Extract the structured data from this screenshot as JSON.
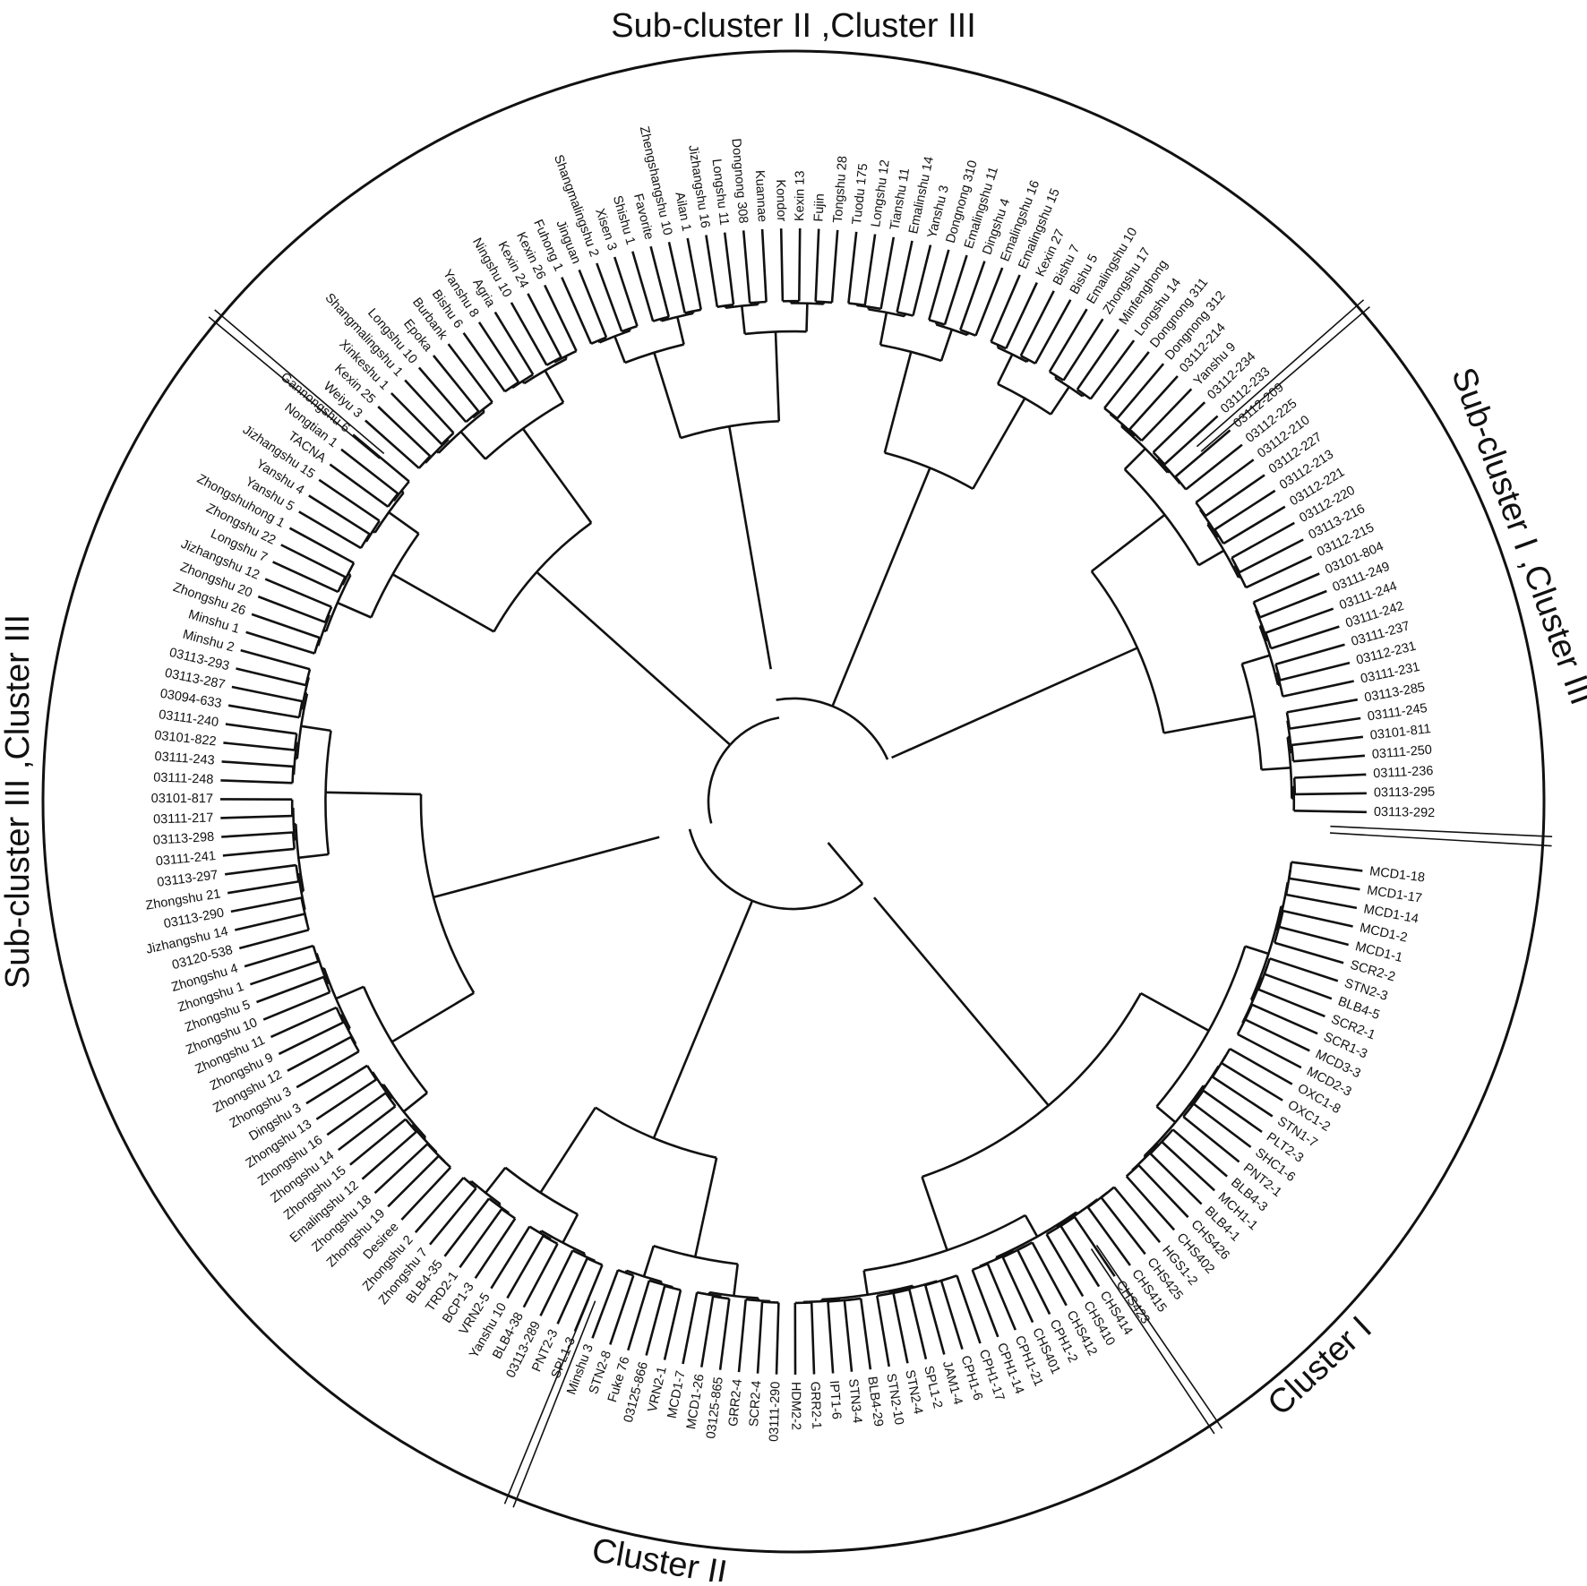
{
  "clusters": [
    {
      "label": "Sub-cluster II ,Cluster III",
      "angle": 270
    },
    {
      "label": "Sub-cluster I ,Cluster III",
      "angle": 340
    },
    {
      "label": "Cluster I",
      "angle": 47
    },
    {
      "label": "Cluster II",
      "angle": 100
    },
    {
      "label": "Sub-cluster III ,Cluster III",
      "angle": 180
    }
  ],
  "leaves": [
    "MCD1-18",
    "MCD1-17",
    "MCD1-14",
    "MCD1-2",
    "MCD1-1",
    "SCR2-2",
    "STN2-3",
    "BLB4-5",
    "SCR2-1",
    "SCR1-3",
    "MCD3-3",
    "MCD2-3",
    "OXC1-8",
    "OXC1-2",
    "STN1-7",
    "PLT2-3",
    "SHC1-6",
    "PNT2-1",
    "BLB4-3",
    "MCH1-1",
    "BLB4-1",
    "CHS426",
    "CHS402",
    "HGS1-2",
    "CHS425",
    "CHS415",
    "CHS423",
    "CHS414",
    "CHS410",
    "CHS412",
    "CPH1-2",
    "CHS401",
    "CPH1-21",
    "CPH1-14",
    "CPH1-17",
    "CPH1-6",
    "JAM1-4",
    "SPL1-2",
    "STN2-4",
    "STN2-10",
    "BLB4-29",
    "STN3-4",
    "IPT1-6",
    "GRR2-1",
    "HDM2-2",
    "03111-290",
    "SCR2-4",
    "GRR2-4",
    "03125-865",
    "MCD1-26",
    "MCD1-7",
    "VRN2-1",
    "03125-866",
    "Fuke 76",
    "STN2-8",
    "Minshu 3",
    "SPL1-3",
    "PNT2-3",
    "03113-289",
    "BLB4-38",
    "Yanshu 10",
    "VRN2-5",
    "BCP1-3",
    "TRD2-1",
    "BLB4-35",
    "Zhongshu 7",
    "Zhongshu 2",
    "Desiree",
    "Zhongshu 19",
    "Zhongshu 18",
    "Emalingshu 12",
    "Zhongshu 15",
    "Zhongshu 14",
    "Zhongshu 16",
    "Zhongshu 13",
    "Dingshu 3",
    "Zhongshu 3",
    "Zhongshu 12",
    "Zhongshu 9",
    "Zhongshu 11",
    "Zhongshu 10",
    "Zhongshu 5",
    "Zhongshu 1",
    "Zhongshu 4",
    "03120-538",
    "Jizhangshu 14",
    "03113-290",
    "Zhongshu 21",
    "03113-297",
    "03111-241",
    "03113-298",
    "03111-217",
    "03101-817",
    "03111-248",
    "03111-243",
    "03101-822",
    "03111-240",
    "03094-633",
    "03113-287",
    "03113-293",
    "Minshu 2",
    "Minshu 1",
    "Zhongshu 26",
    "Zhongshu 20",
    "Jizhangshu 12",
    "Longshu 7",
    "Zhongshu 22",
    "Zhongshuhong 1",
    "Yanshu 5",
    "Yanshu 4",
    "Jizhangshu 15",
    "TACNA",
    "Nongtian 1",
    "Gannongshu 6",
    "Weiyu 3",
    "Kexin 25",
    "Xinkeshu 1",
    "Shangmalingshu 1",
    "Longshu 10",
    "Epoka",
    "Burbank",
    "Bishu 6",
    "Yanshu 8",
    "Agria",
    "Ningshu 10",
    "Kexin 24",
    "Kexin 26",
    "Fuhong 1",
    "Jinguan",
    "Shangmalingshu 2",
    "Xisen 3",
    "Shishu 1",
    "Favorite",
    "Zhengshangshu 10",
    "Ailan 1",
    "Jizhangshu 16",
    "Longshu 11",
    "Dongnong 308",
    "Kuannae",
    "Kondor",
    "Kexin 13",
    "Fujin",
    "Tongshu 28",
    "Tuodu 175",
    "Longshu 12",
    "Tianshu 11",
    "Emalinshu 14",
    "Yanshu 3",
    "Dongnong 310",
    "Emalingshu 11",
    "Dingshu 4",
    "Emalingshu 16",
    "Emalingshu 15",
    "Kexin 27",
    "Bishu 7",
    "Bishu 5",
    "Emalingshu 10",
    "Zhongshu 17",
    "Minfenghong",
    "Longshu 14",
    "Dongnong 311",
    "Dongnong 312",
    "03112-214",
    "Yanshu 9",
    "03112-234",
    "03112-233",
    "03112-209",
    "03112-225",
    "03112-210",
    "03112-227",
    "03112-213",
    "03112-221",
    "03112-220",
    "03113-216",
    "03112-215",
    "03101-804",
    "03111-249",
    "03111-244",
    "03111-242",
    "03111-237",
    "03112-231",
    "03111-231",
    "03113-285",
    "03111-245",
    "03101-811",
    "03111-250",
    "03111-236",
    "03113-295",
    "03113-292"
  ]
}
